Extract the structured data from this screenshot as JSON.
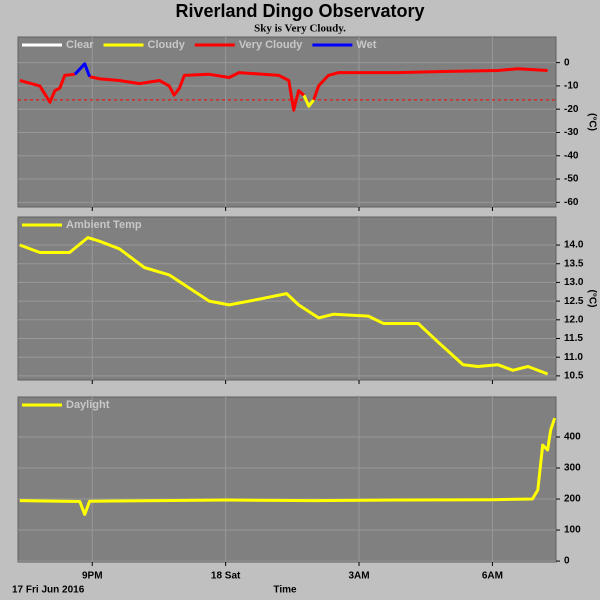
{
  "title": "Riverland Dingo Observatory",
  "subtitle": "Sky is Very Cloudy.",
  "chart_data": [
    {
      "type": "line",
      "ylabel": "(°C)",
      "ylim": [
        -62,
        11
      ],
      "yticks": [
        0,
        -10,
        -20,
        -30,
        -40,
        -50,
        -60
      ],
      "xlim": [
        19.33,
        31.43
      ],
      "xticks": [
        {
          "value": 21,
          "label": "9PM"
        },
        {
          "value": 24,
          "label": "18 Sat"
        },
        {
          "value": 27,
          "label": "3AM"
        },
        {
          "value": 30,
          "label": "6AM"
        }
      ],
      "grid": true,
      "threshold": -16,
      "threshold_color": "#ff0000",
      "x": [
        19.37,
        19.82,
        20.05,
        20.16,
        20.27,
        20.38,
        20.61,
        20.83,
        20.94,
        21.17,
        21.61,
        22.06,
        22.51,
        22.73,
        22.84,
        22.96,
        23.07,
        23.63,
        24.08,
        24.3,
        25.2,
        25.42,
        25.53,
        25.64,
        25.76,
        25.87,
        25.98,
        26.09,
        26.31,
        26.54,
        27.88,
        28.9,
        30.12,
        30.57,
        31.24
      ],
      "series": [
        {
          "name": "Clear",
          "color": "#ffffff",
          "values": [
            null,
            null,
            null,
            null,
            null,
            null,
            null,
            null,
            null,
            null,
            null,
            null,
            null,
            null,
            null,
            null,
            null,
            null,
            null,
            null,
            null,
            null,
            null,
            null,
            null,
            null,
            null,
            null,
            null,
            null,
            null,
            null,
            null,
            null,
            null
          ]
        },
        {
          "name": "Cloudy",
          "color": "#ffff00",
          "values": [
            null,
            null,
            null,
            null,
            null,
            null,
            null,
            null,
            null,
            null,
            null,
            null,
            null,
            null,
            null,
            null,
            null,
            null,
            null,
            null,
            null,
            null,
            null,
            null,
            -14,
            -18.7,
            -16,
            null,
            null,
            null,
            null,
            null,
            null,
            null,
            null
          ]
        },
        {
          "name": "Very Cloudy",
          "color": "#ff0000",
          "values": [
            -7.7,
            -10,
            -17,
            -12,
            -11,
            -5.5,
            -5,
            null,
            -6,
            -7,
            -7.7,
            -9,
            -7.7,
            -10,
            -14,
            -11,
            -5.5,
            -5,
            -6.4,
            -4.3,
            -5.5,
            -7.7,
            -20.4,
            -12,
            -14,
            null,
            -16,
            -10,
            -5.5,
            -4.3,
            -4.3,
            -3.8,
            -3.4,
            -2.6,
            -3.4
          ]
        },
        {
          "name": "Wet",
          "color": "#0000ff",
          "values": [
            null,
            null,
            null,
            null,
            null,
            null,
            -5,
            -0.5,
            -6,
            null,
            null,
            null,
            null,
            null,
            null,
            null,
            null,
            null,
            null,
            null,
            null,
            null,
            null,
            null,
            null,
            null,
            null,
            null,
            null,
            null,
            null,
            null,
            null,
            null,
            null
          ]
        }
      ]
    },
    {
      "type": "line",
      "ylabel": "(°C)",
      "ylim": [
        10.39,
        14.75
      ],
      "yticks": [
        {
          "value": 14,
          "label": "14.0"
        },
        13.5,
        {
          "value": 13,
          "label": "13.0"
        },
        12.5,
        {
          "value": 12,
          "label": "12.0"
        },
        11.5,
        {
          "value": 11,
          "label": "11.0"
        },
        10.5
      ],
      "xlim": [
        19.33,
        31.43
      ],
      "xticks": [
        {
          "value": 21,
          "label": "9PM"
        },
        {
          "value": 24,
          "label": "18 Sat"
        },
        {
          "value": 27,
          "label": "3AM"
        },
        {
          "value": 30,
          "label": "6AM"
        }
      ],
      "grid": true,
      "x": [
        19.37,
        19.82,
        20.49,
        20.9,
        21.17,
        21.61,
        22.17,
        22.73,
        23.18,
        23.63,
        24.08,
        24.75,
        25.37,
        25.64,
        26.09,
        26.43,
        27.21,
        27.55,
        28.33,
        28.78,
        29.34,
        29.67,
        30.12,
        30.46,
        30.8,
        31.24
      ],
      "series": [
        {
          "name": "Ambient Temp",
          "color": "#ffff00",
          "values": [
            14.0,
            13.8,
            13.8,
            14.2,
            14.1,
            13.9,
            13.4,
            13.2,
            12.85,
            12.5,
            12.4,
            12.55,
            12.7,
            12.4,
            12.05,
            12.15,
            12.1,
            11.9,
            11.9,
            11.4,
            10.8,
            10.75,
            10.8,
            10.65,
            10.75,
            10.55
          ]
        }
      ]
    },
    {
      "type": "line",
      "ylim": [
        -3,
        529
      ],
      "yticks": [
        0,
        100,
        200,
        300,
        400
      ],
      "xlim": [
        19.33,
        31.43
      ],
      "xticks": [
        {
          "value": 21,
          "label": "9PM"
        },
        {
          "value": 24,
          "label": "18 Sat"
        },
        {
          "value": 27,
          "label": "3AM"
        },
        {
          "value": 30,
          "label": "6AM"
        }
      ],
      "grid": true,
      "xlabel": "Time",
      "date_label": "17 Fri Jun 2016",
      "x": [
        19.37,
        20.72,
        20.83,
        20.94,
        22.5,
        24,
        26,
        28,
        30,
        30.9,
        31.02,
        31.13,
        31.24,
        31.31,
        31.4
      ],
      "series": [
        {
          "name": "Daylight",
          "color": "#ffff00",
          "values": [
            195,
            192,
            150,
            193,
            195,
            197,
            195,
            197,
            198,
            200,
            229,
            374,
            358,
            423,
            461
          ]
        }
      ]
    }
  ]
}
